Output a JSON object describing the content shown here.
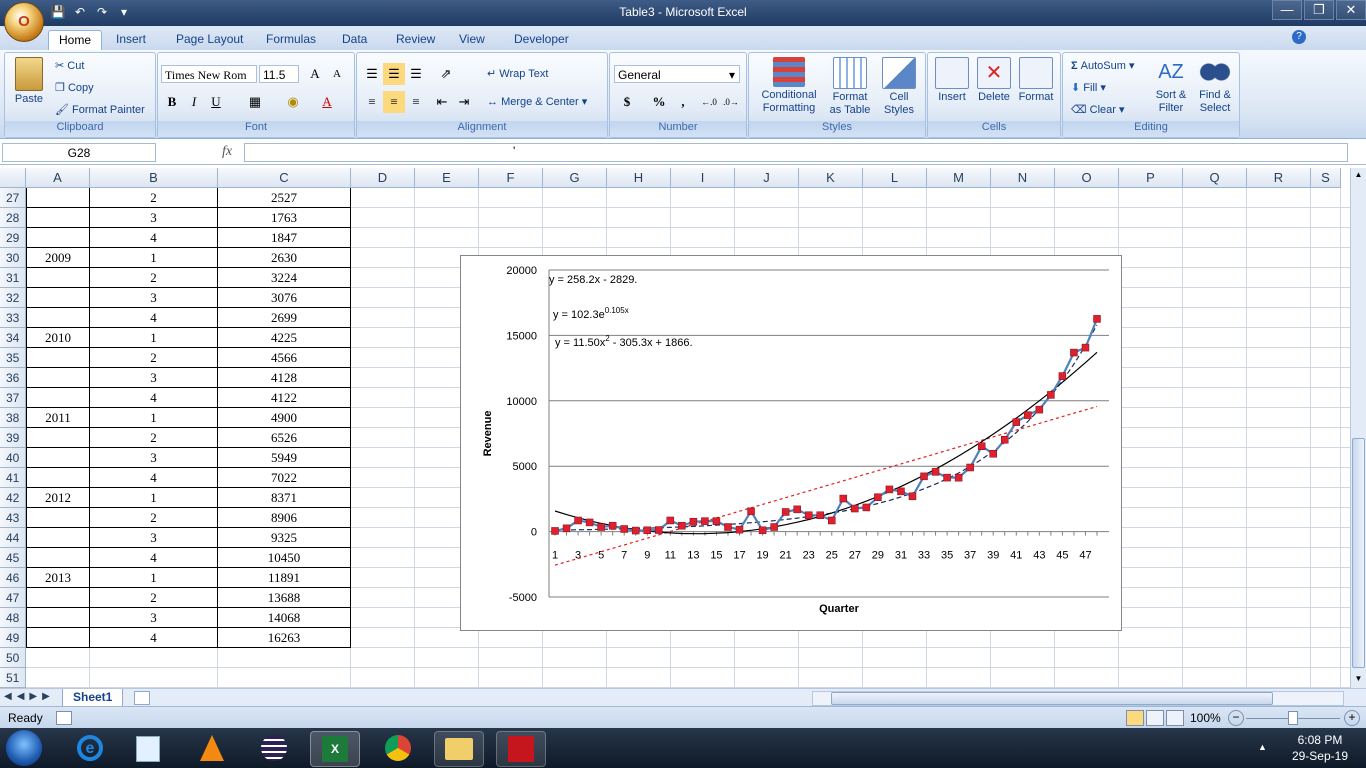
{
  "window": {
    "title": "Table3 - Microsoft Excel",
    "office_button_label": "O"
  },
  "ribbon_tabs": [
    "Home",
    "Insert",
    "Page Layout",
    "Formulas",
    "Data",
    "Review",
    "View",
    "Developer"
  ],
  "clipboard": {
    "paste": "Paste",
    "cut": "Cut",
    "copy": "Copy",
    "format_painter": "Format Painter",
    "label": "Clipboard"
  },
  "font": {
    "name": "Times New Rom",
    "size": "11.5",
    "bold": "B",
    "italic": "I",
    "underline": "U",
    "label": "Font"
  },
  "alignment": {
    "wrap_text": "Wrap Text",
    "merge_center": "Merge & Center",
    "label": "Alignment"
  },
  "number": {
    "format": "General",
    "currency": "$",
    "percent": "%",
    "comma": ",",
    "inc_dec": ".0 .00",
    "dec_dec": ".00 .0",
    "label": "Number"
  },
  "styles": {
    "conditional_formatting": [
      "Conditional",
      "Formatting"
    ],
    "format_as_table": [
      "Format",
      "as Table"
    ],
    "cell_styles": [
      "Cell",
      "Styles"
    ],
    "label": "Styles"
  },
  "cells": {
    "insert": "Insert",
    "delete": "Delete",
    "format": "Format",
    "label": "Cells"
  },
  "editing": {
    "autosum": "AutoSum",
    "fill": "Fill",
    "clear": "Clear",
    "sort_filter": [
      "Sort &",
      "Filter"
    ],
    "find_select": [
      "Find &",
      "Select"
    ],
    "label": "Editing"
  },
  "formula_bar": {
    "name_box": "G28",
    "fx": "fx",
    "content": "'"
  },
  "columns": [
    "A",
    "B",
    "C",
    "D",
    "E",
    "F",
    "G",
    "H",
    "I",
    "J",
    "K",
    "L",
    "M",
    "N",
    "O",
    "P",
    "Q",
    "R",
    "S"
  ],
  "rows": [
    {
      "num": "27",
      "a": "",
      "b": "2",
      "c": "2527"
    },
    {
      "num": "28",
      "a": "",
      "b": "3",
      "c": "1763"
    },
    {
      "num": "29",
      "a": "",
      "b": "4",
      "c": "1847"
    },
    {
      "num": "30",
      "a": "2009",
      "b": "1",
      "c": "2630"
    },
    {
      "num": "31",
      "a": "",
      "b": "2",
      "c": "3224"
    },
    {
      "num": "32",
      "a": "",
      "b": "3",
      "c": "3076"
    },
    {
      "num": "33",
      "a": "",
      "b": "4",
      "c": "2699"
    },
    {
      "num": "34",
      "a": "2010",
      "b": "1",
      "c": "4225"
    },
    {
      "num": "35",
      "a": "",
      "b": "2",
      "c": "4566"
    },
    {
      "num": "36",
      "a": "",
      "b": "3",
      "c": "4128"
    },
    {
      "num": "37",
      "a": "",
      "b": "4",
      "c": "4122"
    },
    {
      "num": "38",
      "a": "2011",
      "b": "1",
      "c": "4900"
    },
    {
      "num": "39",
      "a": "",
      "b": "2",
      "c": "6526"
    },
    {
      "num": "40",
      "a": "",
      "b": "3",
      "c": "5949"
    },
    {
      "num": "41",
      "a": "",
      "b": "4",
      "c": "7022"
    },
    {
      "num": "42",
      "a": "2012",
      "b": "1",
      "c": "8371"
    },
    {
      "num": "43",
      "a": "",
      "b": "2",
      "c": "8906"
    },
    {
      "num": "44",
      "a": "",
      "b": "3",
      "c": "9325"
    },
    {
      "num": "45",
      "a": "",
      "b": "4",
      "c": "10450"
    },
    {
      "num": "46",
      "a": "2013",
      "b": "1",
      "c": "11891"
    },
    {
      "num": "47",
      "a": "",
      "b": "2",
      "c": "13688"
    },
    {
      "num": "48",
      "a": "",
      "b": "3",
      "c": "14068"
    },
    {
      "num": "49",
      "a": "",
      "b": "4",
      "c": "16263"
    },
    {
      "num": "50",
      "a": "",
      "b": "",
      "c": ""
    },
    {
      "num": "51",
      "a": "",
      "b": "",
      "c": ""
    }
  ],
  "chart_data": {
    "type": "line",
    "xlabel": "Quarter",
    "ylabel": "Revenue",
    "ylim": [
      -5000,
      20000
    ],
    "yticks": [
      "20000",
      "15000",
      "10000",
      "5000",
      "0",
      "-5000"
    ],
    "xticks": [
      "1",
      "3",
      "5",
      "7",
      "9",
      "11",
      "13",
      "15",
      "17",
      "19",
      "21",
      "23",
      "25",
      "27",
      "29",
      "31",
      "33",
      "35",
      "37",
      "39",
      "41",
      "43",
      "45",
      "47"
    ],
    "series": [
      {
        "values": [
          50,
          250,
          850,
          700,
          350,
          450,
          200,
          80,
          100,
          120,
          850,
          450,
          750,
          800,
          800,
          350,
          150,
          1550,
          100,
          350,
          1500,
          1700,
          1250,
          1250,
          850,
          2527,
          1763,
          1847,
          2630,
          3224,
          3076,
          2699,
          4225,
          4566,
          4128,
          4122,
          4900,
          6526,
          5949,
          7022,
          8371,
          8906,
          9325,
          10450,
          11891,
          13688,
          14068,
          16263
        ]
      }
    ],
    "trendlines": [
      {
        "equation": "y = 258.2x - 2829.",
        "kind": "linear",
        "color": "#e02020"
      },
      {
        "equation": "y = 102.3e",
        "superscript": "0.105x",
        "kind": "exponential",
        "color": "#1a2e5a"
      },
      {
        "equation": "y = 11.50x",
        "superscript": "2",
        "suffix": " - 305.3x + 1866.",
        "kind": "polynomial",
        "color": "#000000"
      }
    ],
    "series_color": "#4f81bd",
    "marker_color": "#e0202e"
  },
  "sheet_tab": "Sheet1",
  "status": {
    "ready": "Ready",
    "zoom": "100%"
  },
  "clock": {
    "time": "6:08 PM",
    "date": "29-Sep-19"
  }
}
